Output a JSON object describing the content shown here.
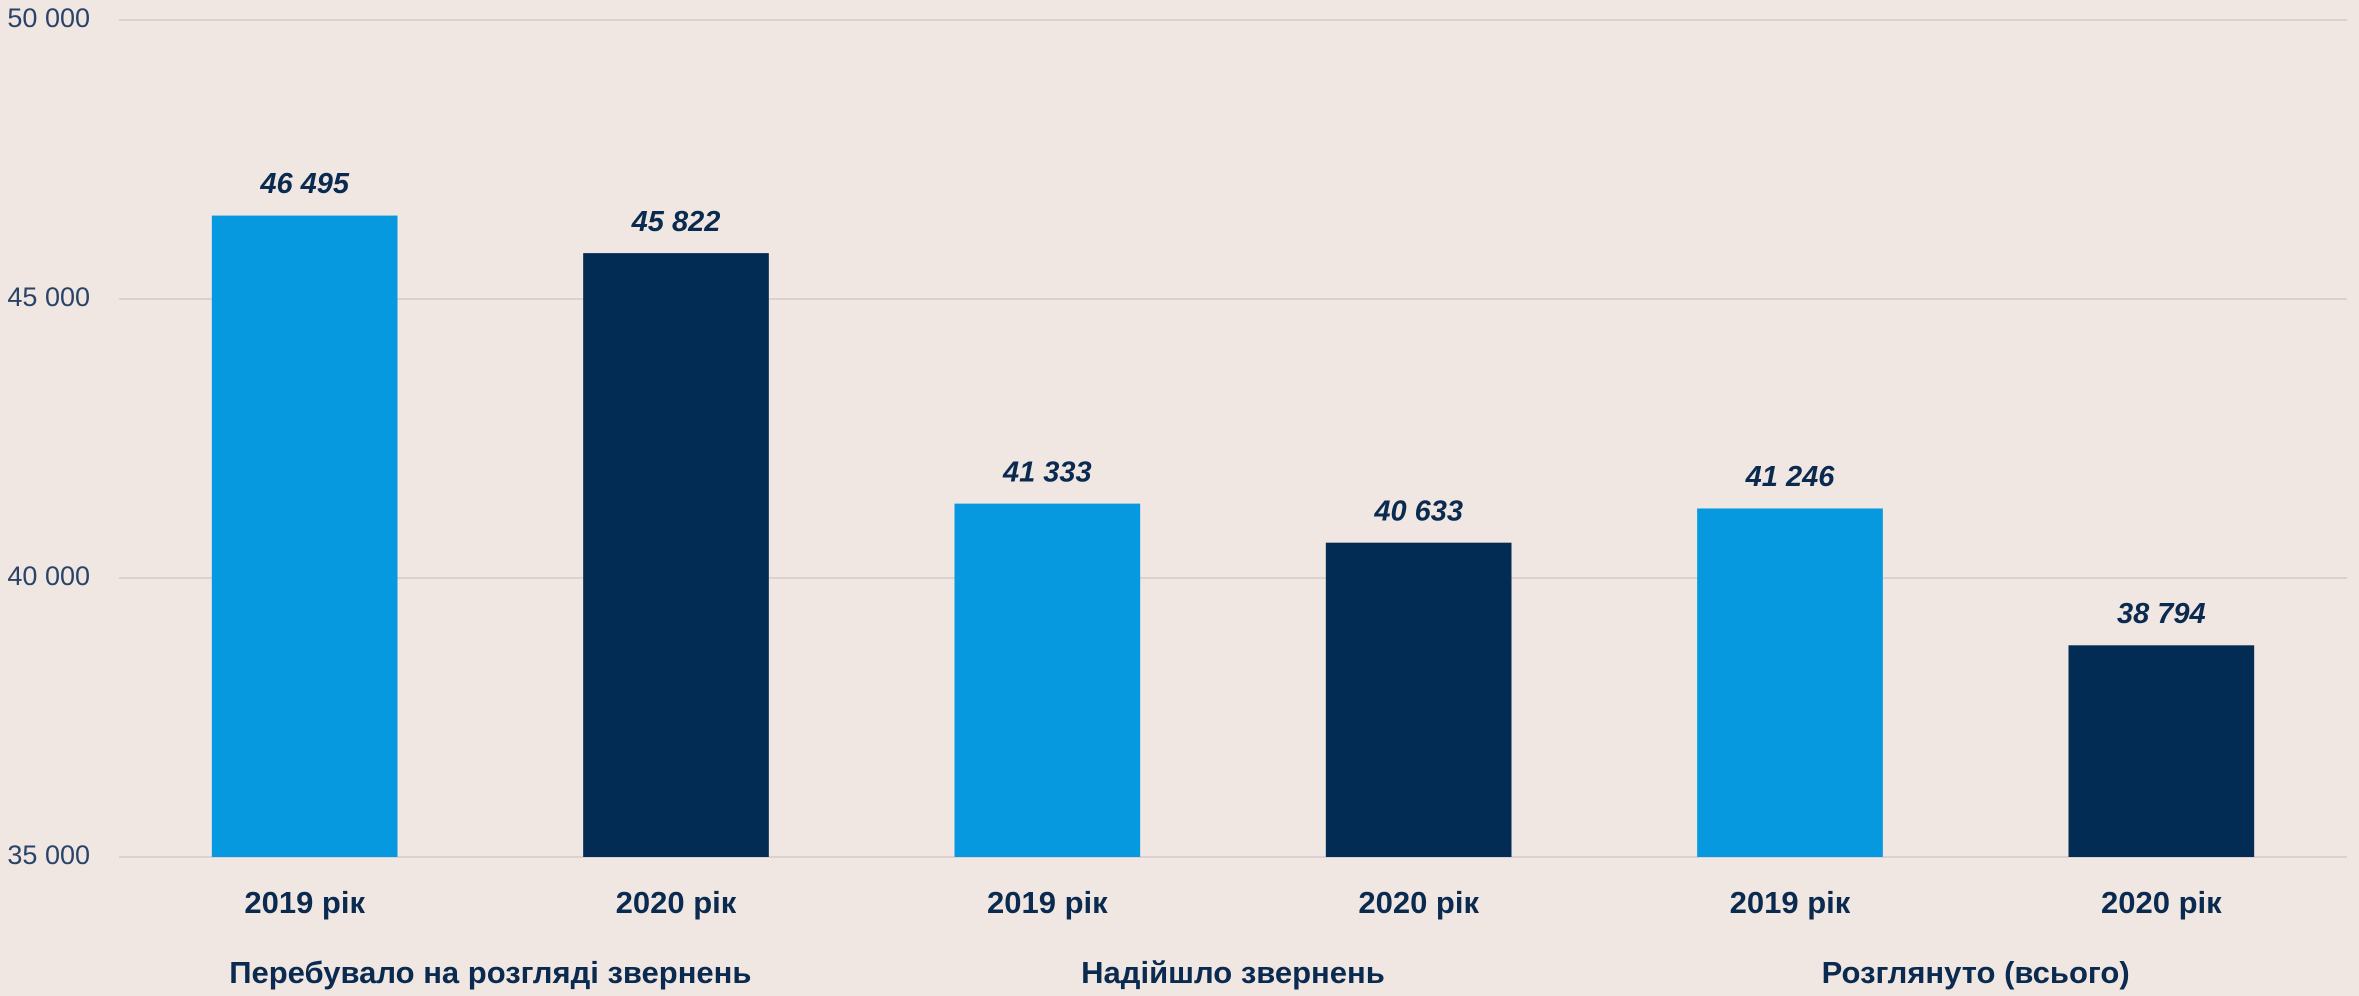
{
  "chart_data": {
    "type": "bar",
    "categories": [
      "Перебувало на розгляді звернень",
      "Надійшло звернень",
      "Розглянуто (всього)"
    ],
    "series": [
      {
        "name": "2019 рік",
        "color": "#0699e0",
        "values": [
          46495,
          41333,
          41246
        ],
        "value_labels": [
          "46 495",
          "41 333",
          "41 246"
        ]
      },
      {
        "name": "2020 рік",
        "color": "#032c54",
        "values": [
          45822,
          40633,
          38794
        ],
        "value_labels": [
          "45 822",
          "40 633",
          "38 794"
        ]
      }
    ],
    "ylim": [
      35000,
      50000
    ],
    "yticks": [
      {
        "value": 35000,
        "label": "35 000"
      },
      {
        "value": 40000,
        "label": "40 000"
      },
      {
        "value": 45000,
        "label": "45 000"
      },
      {
        "value": 50000,
        "label": "50 000"
      }
    ],
    "grid": true
  }
}
